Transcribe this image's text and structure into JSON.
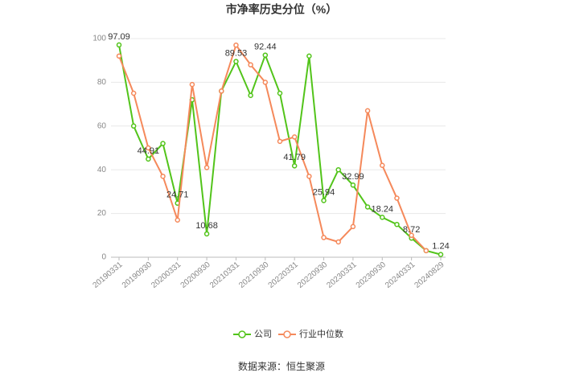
{
  "chart_data": {
    "type": "line",
    "title": "市净率历史分位（%）",
    "categories": [
      "20190331",
      null,
      "20190930",
      null,
      "20200331",
      null,
      "20200930",
      null,
      "20210331",
      null,
      "20210930",
      null,
      "20220331",
      null,
      "20220930",
      null,
      "20230331",
      null,
      "20230930",
      null,
      "20240331",
      null,
      "20240829"
    ],
    "series": [
      {
        "name": "公司",
        "color": "#52c41a",
        "values": [
          97.09,
          60,
          44.91,
          52,
          24.71,
          72,
          10.68,
          76,
          89.53,
          74,
          92.44,
          75,
          41.79,
          92,
          25.94,
          40,
          32.99,
          23,
          18.24,
          15,
          8.72,
          3,
          1.24
        ]
      },
      {
        "name": "行业中位数",
        "color": "#f5895b",
        "values": [
          92,
          75,
          50,
          37,
          17,
          79,
          41,
          76,
          97,
          88,
          80,
          53,
          55,
          37,
          9,
          7,
          14,
          67,
          42,
          27,
          10,
          3,
          null
        ]
      }
    ],
    "ylim": [
      0,
      100
    ],
    "yticks": [
      0,
      20,
      40,
      60,
      80,
      100
    ],
    "grid": true,
    "source": "数据来源：恒生聚源"
  }
}
